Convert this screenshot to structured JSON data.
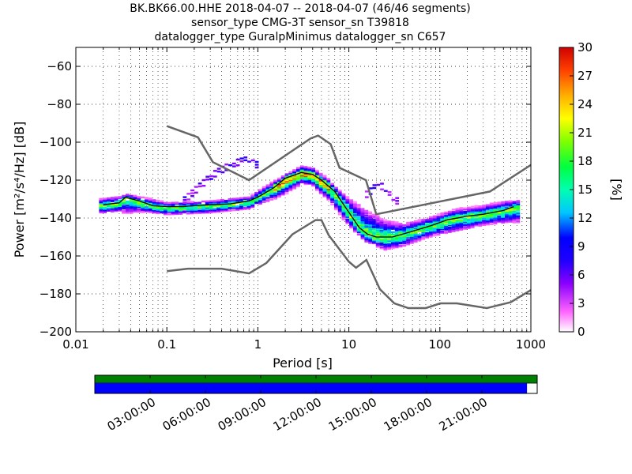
{
  "title": {
    "line1": "BK.BK66.00.HHE   2018-04-07 -- 2018-04-07  (46/46 segments)",
    "line2": "sensor_type CMG-3T sensor_sn T39818",
    "line3": "datalogger_type GuralpMinimus datalogger_sn C657"
  },
  "chart_data": {
    "type": "heatmap",
    "xlabel": "Period [s]",
    "ylabel": "Power [m²/s⁴/Hz] [dB]",
    "x_scale": "log",
    "xlim": [
      0.01,
      1000
    ],
    "ylim": [
      -200,
      -50
    ],
    "x_ticks": [
      "0.01",
      "0.1",
      "1",
      "10",
      "100",
      "1000"
    ],
    "y_ticks": [
      "−60",
      "−80",
      "−100",
      "−120",
      "−140",
      "−160",
      "−180",
      "−200"
    ],
    "grid": true,
    "colorbar": {
      "label": "[%]",
      "range": [
        0,
        30
      ],
      "ticks": [
        "0",
        "3",
        "6",
        "9",
        "12",
        "15",
        "18",
        "21",
        "24",
        "27",
        "30"
      ]
    },
    "nhnm": [
      [
        0.1,
        -91.5
      ],
      [
        0.22,
        -97.4
      ],
      [
        0.32,
        -110.5
      ],
      [
        0.8,
        -120
      ],
      [
        3.8,
        -98
      ],
      [
        4.6,
        -96.5
      ],
      [
        6.3,
        -101
      ],
      [
        7.9,
        -113.5
      ],
      [
        15.4,
        -120
      ],
      [
        20,
        -138
      ],
      [
        354.8,
        -126
      ],
      [
        1000,
        -112
      ]
    ],
    "nlnm": [
      [
        0.1,
        -168
      ],
      [
        0.17,
        -166.7
      ],
      [
        0.4,
        -166.7
      ],
      [
        0.8,
        -169.2
      ],
      [
        1.24,
        -163.7
      ],
      [
        2.4,
        -148.6
      ],
      [
        4.3,
        -141.1
      ],
      [
        5,
        -141.1
      ],
      [
        6,
        -149
      ],
      [
        10,
        -163
      ],
      [
        12,
        -166.2
      ],
      [
        15.6,
        -162.1
      ],
      [
        21.9,
        -177.5
      ],
      [
        31.6,
        -185
      ],
      [
        45,
        -187.5
      ],
      [
        70,
        -187.5
      ],
      [
        101,
        -185
      ],
      [
        154,
        -185
      ],
      [
        328,
        -187.5
      ],
      [
        600,
        -184.4
      ],
      [
        1000,
        -178
      ]
    ],
    "psd_median": [
      [
        0.02,
        -133
      ],
      [
        0.03,
        -132
      ],
      [
        0.035,
        -129
      ],
      [
        0.05,
        -131
      ],
      [
        0.07,
        -133.5
      ],
      [
        0.1,
        -134
      ],
      [
        0.15,
        -134
      ],
      [
        0.2,
        -133.5
      ],
      [
        0.3,
        -133
      ],
      [
        0.5,
        -132.5
      ],
      [
        0.8,
        -131
      ],
      [
        1,
        -129
      ],
      [
        1.5,
        -124
      ],
      [
        2,
        -119
      ],
      [
        3,
        -116
      ],
      [
        4,
        -117
      ],
      [
        5,
        -120
      ],
      [
        7,
        -126
      ],
      [
        10,
        -137
      ],
      [
        13,
        -145
      ],
      [
        16,
        -148.5
      ],
      [
        20,
        -150
      ],
      [
        30,
        -150
      ],
      [
        50,
        -147
      ],
      [
        80,
        -144
      ],
      [
        120,
        -141
      ],
      [
        200,
        -139
      ],
      [
        300,
        -138
      ],
      [
        500,
        -136
      ],
      [
        650,
        -134
      ]
    ],
    "psd_upper": [
      [
        0.02,
        -130
      ],
      [
        0.03,
        -129
      ],
      [
        0.05,
        -129
      ],
      [
        0.1,
        -132
      ],
      [
        0.3,
        -131
      ],
      [
        0.8,
        -129
      ],
      [
        1.5,
        -121
      ],
      [
        3,
        -113
      ],
      [
        4,
        -114
      ],
      [
        6,
        -120
      ],
      [
        10,
        -131
      ],
      [
        15,
        -138
      ],
      [
        25,
        -143
      ],
      [
        40,
        -144
      ],
      [
        80,
        -140
      ],
      [
        150,
        -136
      ],
      [
        300,
        -134
      ],
      [
        650,
        -131
      ]
    ],
    "psd_lower": [
      [
        0.02,
        -136
      ],
      [
        0.03,
        -135
      ],
      [
        0.05,
        -135
      ],
      [
        0.1,
        -137
      ],
      [
        0.3,
        -136
      ],
      [
        0.8,
        -134
      ],
      [
        1.5,
        -128
      ],
      [
        3,
        -120
      ],
      [
        4,
        -121
      ],
      [
        6,
        -128
      ],
      [
        10,
        -142
      ],
      [
        15,
        -151
      ],
      [
        25,
        -155
      ],
      [
        40,
        -153
      ],
      [
        80,
        -148
      ],
      [
        150,
        -145
      ],
      [
        300,
        -142
      ],
      [
        650,
        -140
      ]
    ],
    "outlier_branch_1": [
      [
        0.15,
        -130
      ],
      [
        0.3,
        -117
      ],
      [
        0.5,
        -111
      ],
      [
        0.7,
        -109
      ],
      [
        1,
        -112
      ]
    ],
    "outlier_branch_2": [
      [
        15,
        -127
      ],
      [
        20,
        -122
      ],
      [
        25,
        -124
      ],
      [
        30,
        -129
      ],
      [
        35,
        -132
      ]
    ]
  },
  "timeline": {
    "labels": [
      "03:00:00",
      "06:00:00",
      "09:00:00",
      "12:00:00",
      "15:00:00",
      "18:00:00",
      "21:00:00"
    ],
    "coverage_fraction": 0.977,
    "colors": {
      "top_band": "#008000",
      "bottom_band": "#0000ff"
    }
  }
}
